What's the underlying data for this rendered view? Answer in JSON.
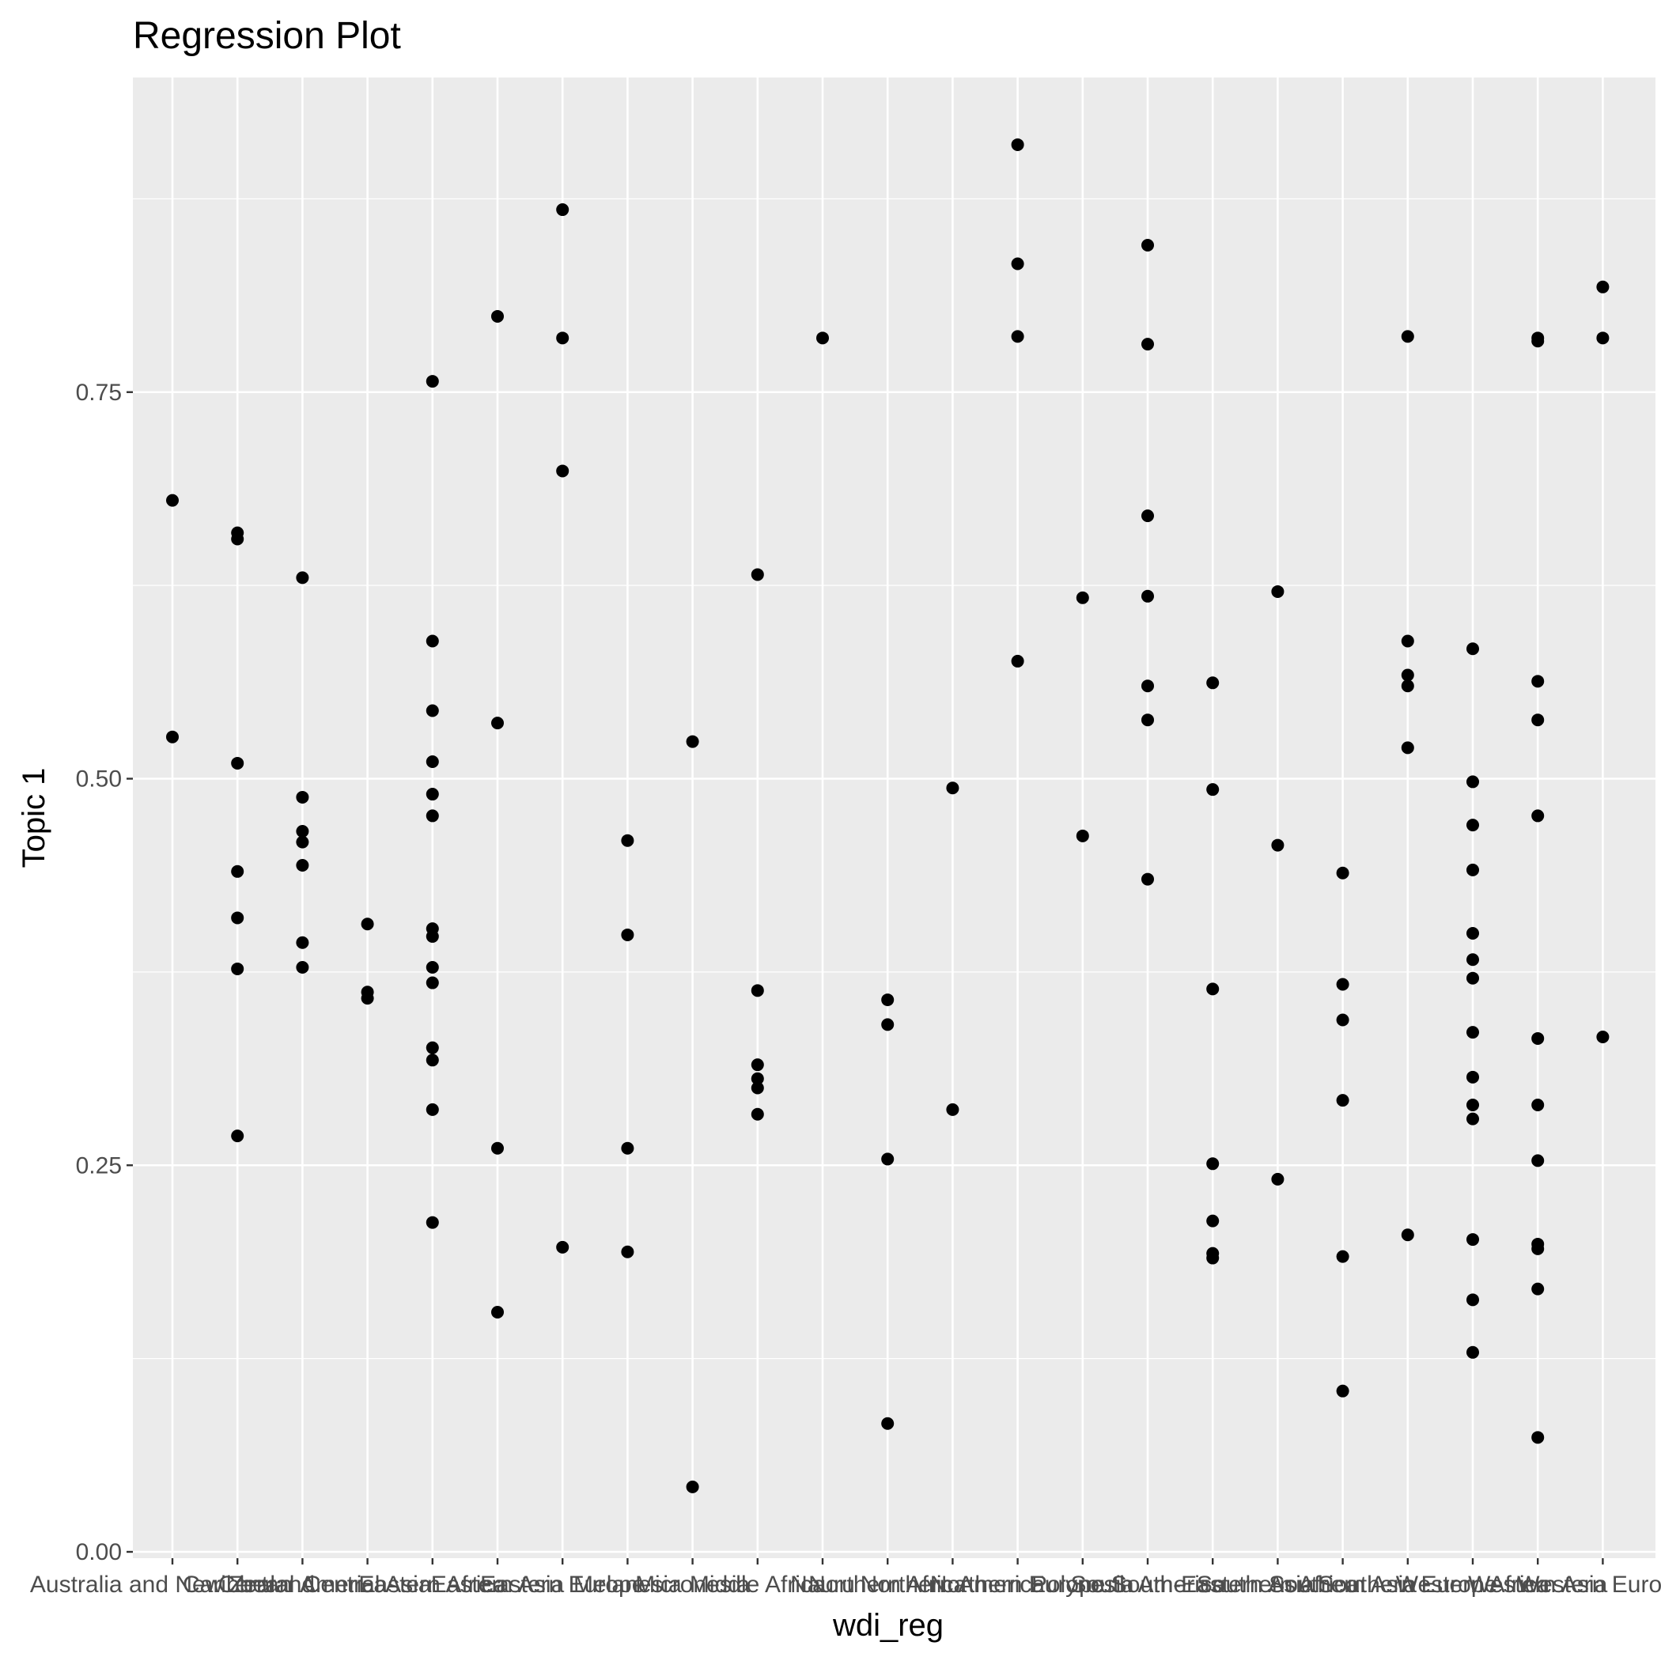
{
  "chart_data": {
    "type": "scatter",
    "title": "Regression Plot",
    "xlabel": "wdi_reg",
    "ylabel": "Topic 1",
    "ylim": [
      0.0,
      0.93
    ],
    "y_ticks": [
      0.0,
      0.25,
      0.5,
      0.75
    ],
    "y_tick_labels": [
      "0.00",
      "0.25",
      "0.50",
      "0.75"
    ],
    "grid": true,
    "legend": "none",
    "point_color": "#000000",
    "panel_background": "#ebebeb",
    "grid_color": "#ffffff",
    "categories": [
      "Australia and New Zealand",
      "Caribbean",
      "Central America",
      "Central Asia",
      "Eastern Africa",
      "Eastern Asia",
      "Eastern Europe",
      "Melanesia",
      "Micronesia",
      "Middle Africa",
      "Nauru",
      "Northern Africa",
      "Northern America",
      "Northern Europe",
      "Polynesia",
      "South America",
      "South-Eastern Asia",
      "Southern Africa",
      "Southern Asia",
      "Southern Europe",
      "Western Africa",
      "Western Asia",
      "Western Europe"
    ],
    "points": [
      {
        "x": "Australia and New Zealand",
        "y": [
          0.68,
          0.527
        ]
      },
      {
        "x": "Caribbean",
        "y": [
          0.659,
          0.655,
          0.51,
          0.44,
          0.41,
          0.377,
          0.269
        ]
      },
      {
        "x": "Central America",
        "y": [
          0.63,
          0.488,
          0.466,
          0.459,
          0.444,
          0.394,
          0.378
        ]
      },
      {
        "x": "Central Asia",
        "y": [
          0.406,
          0.362,
          0.358
        ]
      },
      {
        "x": "Eastern Africa",
        "y": [
          0.757,
          0.589,
          0.544,
          0.511,
          0.49,
          0.476,
          0.403,
          0.398,
          0.378,
          0.368,
          0.326,
          0.318,
          0.286,
          0.213
        ]
      },
      {
        "x": "Eastern Asia",
        "y": [
          0.799,
          0.536,
          0.261,
          0.155
        ]
      },
      {
        "x": "Eastern Europe",
        "y": [
          0.868,
          0.785,
          0.699,
          0.197
        ]
      },
      {
        "x": "Melanesia",
        "y": [
          0.46,
          0.399,
          0.261,
          0.194
        ]
      },
      {
        "x": "Micronesia",
        "y": [
          0.524,
          0.042
        ]
      },
      {
        "x": "Middle Africa",
        "y": [
          0.632,
          0.363,
          0.315,
          0.306,
          0.3,
          0.283
        ]
      },
      {
        "x": "Nauru",
        "y": [
          0.785
        ]
      },
      {
        "x": "Northern Africa",
        "y": [
          0.357,
          0.341,
          0.254,
          0.083
        ]
      },
      {
        "x": "Northern America",
        "y": [
          0.494,
          0.286
        ]
      },
      {
        "x": "Northern Europe",
        "y": [
          0.91,
          0.833,
          0.786,
          0.576
        ]
      },
      {
        "x": "Polynesia",
        "y": [
          0.617,
          0.463
        ]
      },
      {
        "x": "South America",
        "y": [
          0.845,
          0.781,
          0.67,
          0.618,
          0.56,
          0.538,
          0.435
        ]
      },
      {
        "x": "South-Eastern Asia",
        "y": [
          0.562,
          0.493,
          0.364,
          0.251,
          0.214,
          0.193,
          0.19
        ]
      },
      {
        "x": "Southern Africa",
        "y": [
          0.621,
          0.457,
          0.241
        ]
      },
      {
        "x": "Southern Asia",
        "y": [
          0.439,
          0.367,
          0.344,
          0.292,
          0.191,
          0.104
        ]
      },
      {
        "x": "Southern Europe",
        "y": [
          0.786,
          0.589,
          0.567,
          0.56,
          0.52,
          0.205
        ]
      },
      {
        "x": "Western Africa",
        "y": [
          0.584,
          0.498,
          0.47,
          0.441,
          0.4,
          0.383,
          0.371,
          0.336,
          0.307,
          0.289,
          0.28,
          0.202,
          0.163,
          0.129
        ]
      },
      {
        "x": "Western Asia",
        "y": [
          0.785,
          0.783,
          0.563,
          0.538,
          0.476,
          0.332,
          0.289,
          0.253,
          0.199,
          0.196,
          0.17,
          0.074
        ]
      },
      {
        "x": "Western Europe",
        "y": [
          0.818,
          0.785,
          0.333
        ]
      }
    ]
  }
}
